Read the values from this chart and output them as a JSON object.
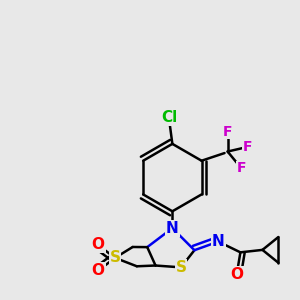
{
  "bg_color": "#e8e8e8",
  "bond_color": "#000000",
  "bond_width": 1.8,
  "atom_colors": {
    "Cl": "#00bb00",
    "F": "#cc00cc",
    "N": "#0000ee",
    "S": "#ccbb00",
    "O": "#ff0000",
    "C": "#000000"
  },
  "font_size": 11,
  "font_size_f": 10
}
